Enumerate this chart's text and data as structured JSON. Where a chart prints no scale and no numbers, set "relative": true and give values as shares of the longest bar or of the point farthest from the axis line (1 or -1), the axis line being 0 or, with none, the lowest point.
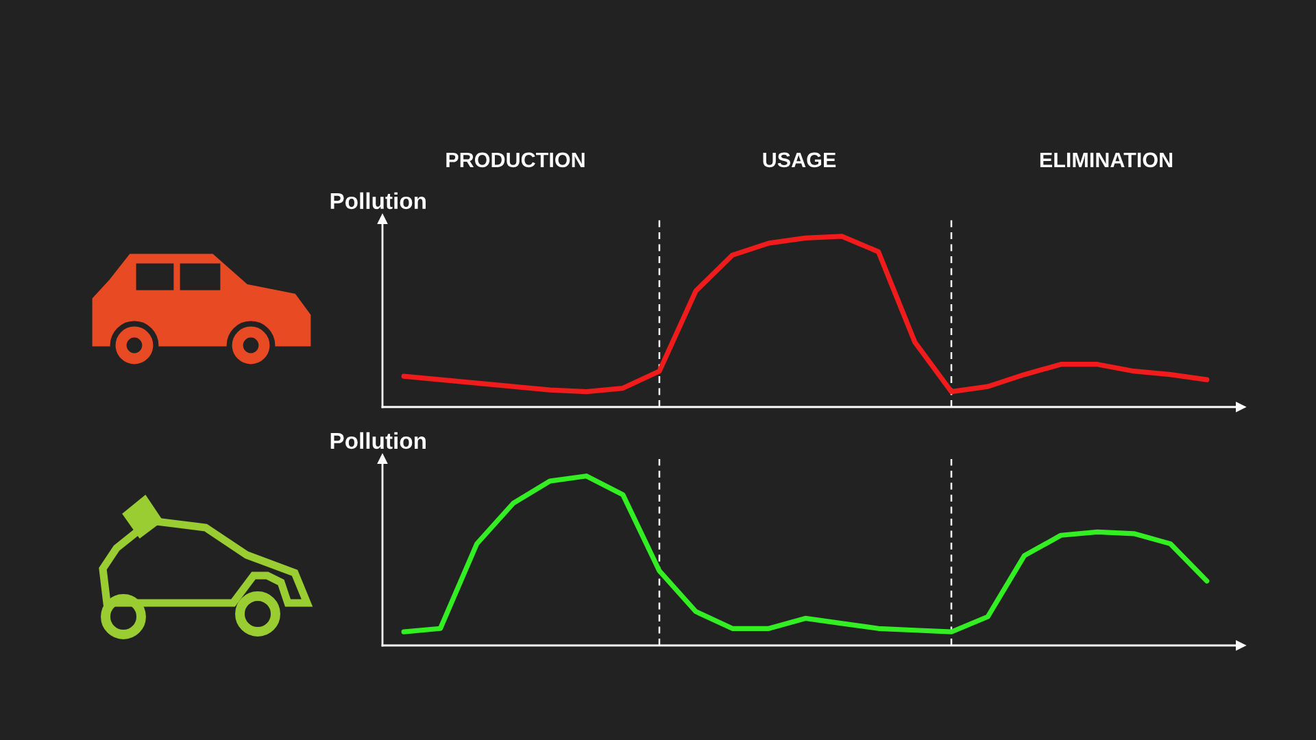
{
  "chart_data": [
    {
      "type": "line",
      "relative": true,
      "ylabel": "Pollution",
      "annotations": [
        "PRODUCTION",
        "USAGE",
        "ELIMINATION"
      ],
      "categories": [
        null,
        null,
        null,
        null,
        null,
        null,
        null,
        null,
        null,
        null,
        null,
        null,
        null,
        null,
        null,
        null,
        null,
        null,
        null,
        null,
        null,
        null,
        null
      ],
      "series": [
        {
          "color": "#f01c1c",
          "values": [
            0.18,
            0.16,
            0.14,
            0.12,
            0.1,
            0.09,
            0.11,
            0.21,
            0.68,
            0.89,
            0.96,
            0.99,
            1,
            0.91,
            0.38,
            0.09,
            0.12,
            0.19,
            0.25,
            0.25,
            0.21,
            0.19,
            0.16
          ]
        }
      ]
    },
    {
      "type": "line",
      "relative": true,
      "ylabel": "Pollution",
      "categories": [
        null,
        null,
        null,
        null,
        null,
        null,
        null,
        null,
        null,
        null,
        null,
        null,
        null,
        null,
        null,
        null,
        null,
        null,
        null,
        null,
        null,
        null,
        null
      ],
      "series": [
        {
          "color": "#33ee22",
          "values": [
            0.08,
            0.1,
            0.6,
            0.84,
            0.97,
            1,
            0.89,
            0.44,
            0.2,
            0.1,
            0.1,
            0.16,
            0.13,
            0.1,
            0.09,
            0.08,
            0.17,
            0.53,
            0.65,
            0.67,
            0.66,
            0.6,
            0.38
          ]
        }
      ]
    }
  ]
}
